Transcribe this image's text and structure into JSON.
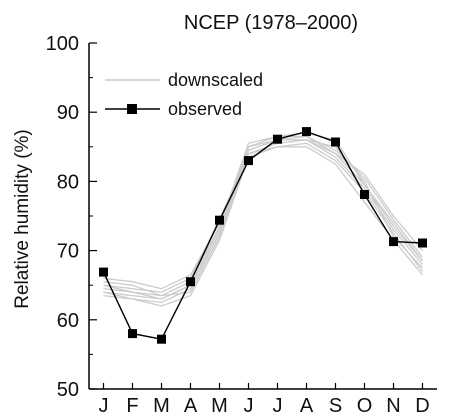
{
  "chart_data": {
    "type": "line",
    "title": "NCEP (1978–2000)",
    "xlabel": "",
    "ylabel": "Relative humidity (%)",
    "categories": [
      "J",
      "F",
      "M",
      "A",
      "M",
      "J",
      "J",
      "A",
      "S",
      "O",
      "N",
      "D"
    ],
    "ylim": [
      50,
      100
    ],
    "yticks": [
      50,
      60,
      70,
      80,
      90,
      100
    ],
    "grid": false,
    "legend_position": "top-left",
    "legend": {
      "downscaled": "downscaled",
      "observed": "observed"
    },
    "colors": {
      "downscaled": "#cccccc",
      "observed": "#000000",
      "axis": "#000000"
    },
    "series": [
      {
        "name": "observed",
        "role": "observed",
        "values": [
          66.9,
          58.0,
          57.2,
          65.5,
          74.4,
          83.0,
          86.1,
          87.2,
          85.7,
          78.1,
          71.3,
          71.1
        ]
      },
      {
        "name": "downscaled",
        "role": "downscaled",
        "values": [
          63.5,
          63.0,
          62.5,
          64.5,
          72.5,
          84.5,
          86.0,
          86.0,
          83.5,
          79.0,
          73.0,
          68.0
        ]
      },
      {
        "name": "downscaled",
        "role": "downscaled",
        "values": [
          64.0,
          63.5,
          63.0,
          65.0,
          73.0,
          85.0,
          86.5,
          86.5,
          84.5,
          80.5,
          74.5,
          69.0
        ]
      },
      {
        "name": "downscaled",
        "role": "downscaled",
        "values": [
          65.0,
          64.5,
          64.0,
          66.0,
          74.5,
          84.0,
          85.5,
          86.0,
          85.0,
          80.0,
          72.0,
          67.5
        ]
      },
      {
        "name": "downscaled",
        "role": "downscaled",
        "values": [
          64.5,
          64.0,
          63.5,
          65.5,
          73.5,
          85.5,
          86.5,
          87.0,
          86.0,
          79.5,
          73.5,
          68.5
        ]
      },
      {
        "name": "downscaled",
        "role": "downscaled",
        "values": [
          66.0,
          65.5,
          64.5,
          66.5,
          74.0,
          84.5,
          86.0,
          86.5,
          84.0,
          81.0,
          75.0,
          70.0
        ]
      },
      {
        "name": "downscaled",
        "role": "downscaled",
        "values": [
          64.0,
          63.0,
          62.0,
          63.5,
          71.5,
          83.5,
          85.0,
          85.5,
          83.0,
          78.5,
          72.5,
          67.0
        ]
      },
      {
        "name": "downscaled",
        "role": "downscaled",
        "values": [
          65.5,
          65.0,
          63.5,
          64.0,
          72.0,
          84.0,
          85.0,
          85.0,
          82.5,
          77.0,
          71.5,
          66.5
        ]
      },
      {
        "name": "downscaled",
        "role": "downscaled",
        "values": [
          65.0,
          64.0,
          63.0,
          65.0,
          73.0,
          85.0,
          86.0,
          86.0,
          84.0,
          79.5,
          74.0,
          68.5
        ]
      }
    ]
  }
}
